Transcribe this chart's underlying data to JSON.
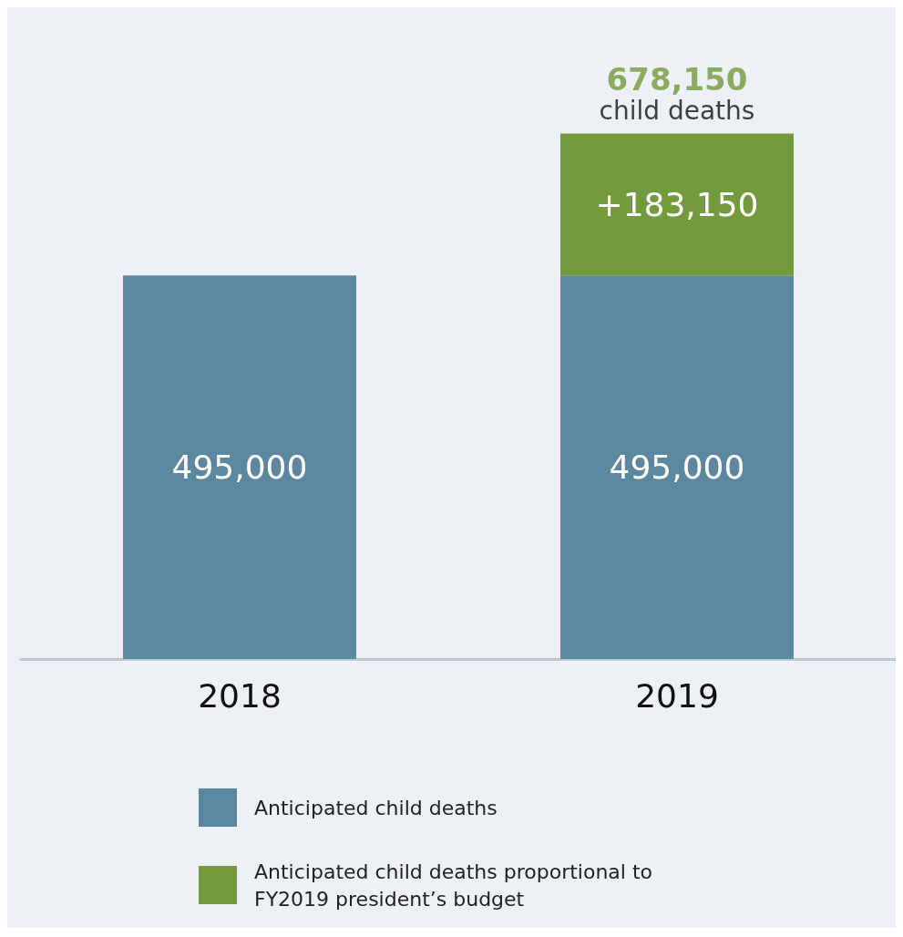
{
  "chart_data": {
    "type": "bar",
    "stacked": true,
    "legend": "bottom",
    "categories": [
      "2018",
      "2019"
    ],
    "series": [
      {
        "name": "Anticipated child deaths",
        "color": "#5b87a0",
        "values": [
          495000,
          495000
        ],
        "value_labels": [
          "495,000",
          "495,000"
        ]
      },
      {
        "name": "Anticipated child deaths proportional to FY2019 president’s budget",
        "color": "#739a3c",
        "values": [
          null,
          183150
        ],
        "value_labels": [
          null,
          "+183,150"
        ]
      }
    ],
    "totals": [
      null,
      "678,150"
    ],
    "annotations": [
      {
        "text": "child deaths",
        "x": "2019",
        "y": 678150
      }
    ]
  }
}
